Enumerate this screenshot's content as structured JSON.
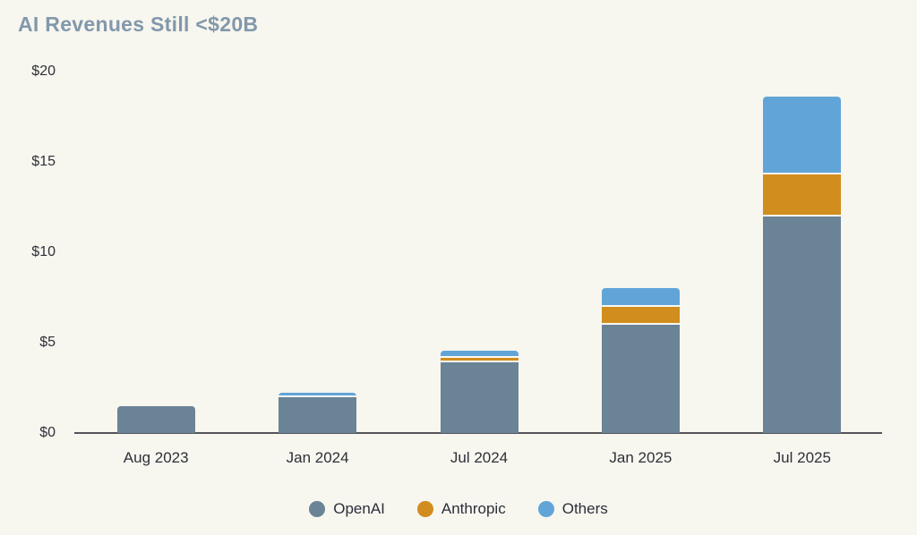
{
  "chart_data": {
    "type": "bar",
    "stacked": true,
    "title": "AI Revenues Still <$20B",
    "categories": [
      "Aug 2023",
      "Jan 2024",
      "Jul 2024",
      "Jan 2025",
      "Jul 2025"
    ],
    "series": [
      {
        "name": "OpenAI",
        "color": "#6b8396",
        "values": [
          1.5,
          2.0,
          3.9,
          6.0,
          12.0
        ]
      },
      {
        "name": "Anthropic",
        "color": "#d18d1e",
        "values": [
          0,
          0,
          0.25,
          1.0,
          2.3
        ]
      },
      {
        "name": "Others",
        "color": "#61a5d8",
        "values": [
          0,
          0.25,
          0.4,
          1.0,
          4.3
        ]
      }
    ],
    "y_ticks": [
      {
        "value": 0,
        "label": "$0"
      },
      {
        "value": 5,
        "label": "$5"
      },
      {
        "value": 10,
        "label": "$10"
      },
      {
        "value": 15,
        "label": "$15"
      },
      {
        "value": 20,
        "label": "$20"
      }
    ],
    "ylim": [
      0,
      20
    ],
    "xlabel": "",
    "ylabel": "",
    "grid": false,
    "legend_position": "bottom"
  },
  "colors": {
    "background": "#f7f6ef",
    "title_text": "#8298ab",
    "axis_text": "#2f3038",
    "legend_text": "#2c2f3a",
    "axis_line": "#54545a",
    "segment_gap": "#f9f8f2"
  }
}
